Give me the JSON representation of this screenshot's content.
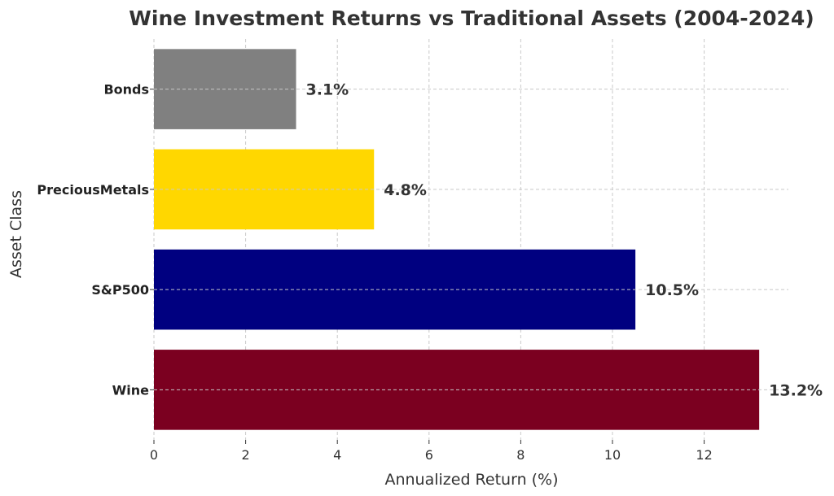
{
  "chart_data": {
    "type": "bar",
    "orientation": "horizontal",
    "title": "Wine Investment Returns vs Traditional Assets (2004-2024)",
    "xlabel": "Annualized Return (%)",
    "ylabel": "Asset Class",
    "xlim": [
      0,
      13.8
    ],
    "xticks": [
      0,
      2,
      4,
      6,
      8,
      10,
      12
    ],
    "grid": true,
    "categories": [
      "Wine",
      "S&P500",
      "PreciousMetals",
      "Bonds"
    ],
    "values": [
      13.2,
      10.5,
      4.8,
      3.1
    ],
    "data_labels": [
      "13.2%",
      "10.5%",
      "4.8%",
      "3.1%"
    ],
    "colors": [
      "#7b0020",
      "#000080",
      "#ffd700",
      "#808080"
    ]
  }
}
